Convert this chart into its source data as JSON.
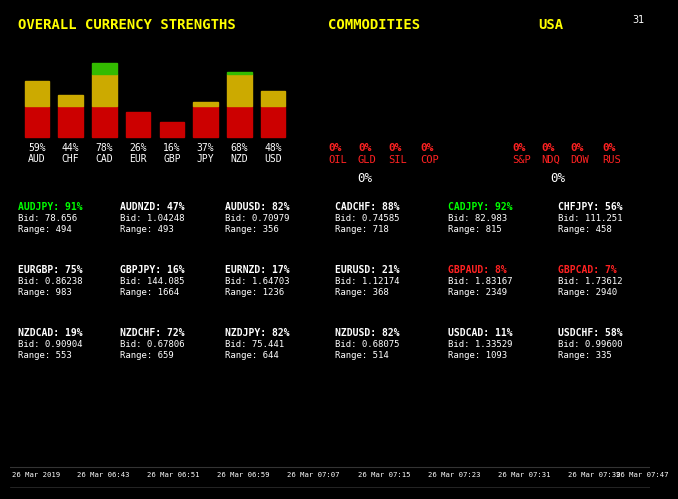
{
  "bg_color": "#000000",
  "title_color": "#ffff00",
  "commodities_title": "COMMODITIES",
  "usa_title": "USA",
  "overall_title": "OVERALL CURRENCY STRENGTHS",
  "corner_text": "31",
  "bars": {
    "labels": [
      "AUD",
      "CHF",
      "CAD",
      "EUR",
      "GBP",
      "JPY",
      "NZD",
      "USD"
    ],
    "percents": [
      59,
      44,
      78,
      26,
      16,
      37,
      68,
      48
    ]
  },
  "commodities": {
    "items": [
      "OIL",
      "GLD",
      "SIL",
      "COP"
    ],
    "values": [
      "0%",
      "0%",
      "0%",
      "0%"
    ],
    "total": "0%"
  },
  "usa": {
    "items": [
      "S&P",
      "NDQ",
      "DOW",
      "RUS"
    ],
    "values": [
      "0%",
      "0%",
      "0%",
      "0%"
    ],
    "total": "0%"
  },
  "pairs_row1": [
    {
      "name": "AUDJPY",
      "pct": "91%",
      "bid": "78.656",
      "range": "494",
      "color": "#00ff00"
    },
    {
      "name": "AUDNZD",
      "pct": "47%",
      "bid": "1.04248",
      "range": "493",
      "color": "#ffffff"
    },
    {
      "name": "AUDUSD",
      "pct": "82%",
      "bid": "0.70979",
      "range": "356",
      "color": "#ffffff"
    },
    {
      "name": "CADCHF",
      "pct": "88%",
      "bid": "0.74585",
      "range": "718",
      "color": "#ffffff"
    },
    {
      "name": "CADJPY",
      "pct": "92%",
      "bid": "82.983",
      "range": "815",
      "color": "#00ff00"
    },
    {
      "name": "CHFJPY",
      "pct": "56%",
      "bid": "111.251",
      "range": "458",
      "color": "#ffffff"
    }
  ],
  "pairs_row2": [
    {
      "name": "EURGBP",
      "pct": "75%",
      "bid": "0.86238",
      "range": "983",
      "color": "#ffffff"
    },
    {
      "name": "GBPJPY",
      "pct": "16%",
      "bid": "144.085",
      "range": "1664",
      "color": "#ffffff"
    },
    {
      "name": "EURNZD",
      "pct": "17%",
      "bid": "1.64703",
      "range": "1236",
      "color": "#ffffff"
    },
    {
      "name": "EURUSD",
      "pct": "21%",
      "bid": "1.12174",
      "range": "368",
      "color": "#ffffff"
    },
    {
      "name": "GBPAUD",
      "pct": "8%",
      "bid": "1.83167",
      "range": "2349",
      "color": "#ff2222"
    },
    {
      "name": "GBPCAD",
      "pct": "7%",
      "bid": "1.73612",
      "range": "2940",
      "color": "#ff2222"
    }
  ],
  "pairs_row3": [
    {
      "name": "NZDCAD",
      "pct": "19%",
      "bid": "0.90904",
      "range": "553",
      "color": "#ffffff"
    },
    {
      "name": "NZDCHF",
      "pct": "72%",
      "bid": "0.67806",
      "range": "659",
      "color": "#ffffff"
    },
    {
      "name": "NZDJPY",
      "pct": "82%",
      "bid": "75.441",
      "range": "644",
      "color": "#ffffff"
    },
    {
      "name": "NZDUSD",
      "pct": "82%",
      "bid": "0.68075",
      "range": "514",
      "color": "#ffffff"
    },
    {
      "name": "USDCAD",
      "pct": "11%",
      "bid": "1.33529",
      "range": "1093",
      "color": "#ffffff"
    },
    {
      "name": "USDCHF",
      "pct": "58%",
      "bid": "0.99600",
      "range": "335",
      "color": "#ffffff"
    }
  ],
  "timestamps": [
    "26 Mar 2019",
    "26 Mar 06:43",
    "26 Mar 06:51",
    "26 Mar 06:59",
    "26 Mar 07:07",
    "26 Mar 07:15",
    "26 Mar 07:23",
    "26 Mar 07:31",
    "26 Mar 07:39",
    "26 Mar 07:47"
  ],
  "bar_colors": {
    "red": "#cc0000",
    "yellow": "#ccaa00",
    "green": "#33bb00"
  }
}
